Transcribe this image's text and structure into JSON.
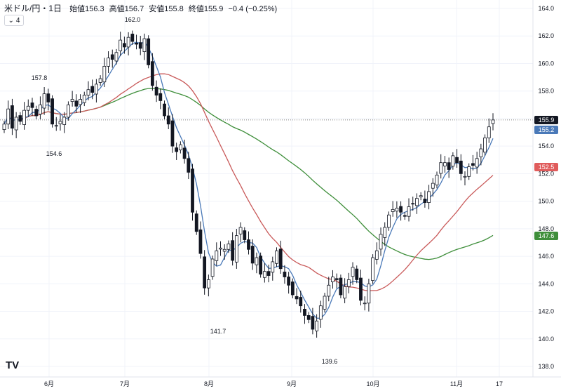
{
  "header": {
    "symbol": "米ドル/円・1日",
    "open": "始値156.3",
    "high": "高値156.7",
    "low": "安値155.8",
    "close": "終値155.9",
    "change": "−0.4 (−0.25%)"
  },
  "indicator_toggle": {
    "icon": "chevron-down-icon",
    "count": "4"
  },
  "logo": "TV",
  "price_labels": [
    {
      "value": "155.9",
      "color": "#131722"
    },
    {
      "value": "155.2",
      "color": "#4a79b8"
    },
    {
      "value": "152.5",
      "color": "#e05c5c"
    },
    {
      "value": "147.6",
      "color": "#3e8e3a"
    }
  ],
  "chart_data": {
    "type": "candlestick",
    "y_axis": {
      "min": 138.0,
      "max": 164.0,
      "ticks": [
        "164.0",
        "162.0",
        "160.0",
        "158.0",
        "156.0",
        "154.0",
        "152.0",
        "150.0",
        "148.0",
        "146.0",
        "144.0",
        "142.0",
        "140.0",
        "138.0"
      ]
    },
    "x_ticks": [
      "6月",
      "7月",
      "8月",
      "9月",
      "10月",
      "11月",
      "17"
    ],
    "annotations": [
      "162.0",
      "157.8",
      "154.6",
      "141.7",
      "139.6"
    ],
    "current_price": 155.9,
    "series": {
      "fast_ma_color": "#4a79b8",
      "mid_ma_color": "#c95a5a",
      "slow_ma_color": "#3e8e3a"
    },
    "candles_close": [
      155.6,
      156.7,
      155.3,
      156.1,
      155.8,
      156.6,
      156.9,
      156.8,
      156.2,
      157.0,
      157.8,
      157.2,
      155.6,
      155.5,
      155.8,
      156.1,
      157.0,
      157.4,
      156.9,
      157.4,
      157.7,
      158.1,
      157.9,
      158.5,
      158.9,
      159.8,
      160.4,
      160.3,
      160.8,
      161.7,
      161.2,
      161.9,
      161.6,
      161.4,
      161.1,
      161.8,
      159.9,
      158.4,
      157.7,
      157.3,
      156.2,
      155.6,
      154.0,
      153.6,
      154.1,
      153.1,
      152.1,
      149.2,
      147.8,
      146.2,
      143.7,
      144.3,
      145.8,
      146.4,
      146.6,
      146.5,
      146.9,
      145.7,
      147.5,
      148.1,
      147.2,
      146.5,
      145.5,
      145.9,
      144.7,
      144.9,
      144.6,
      145.6,
      146.4,
      145.1,
      144.5,
      143.9,
      143.2,
      142.9,
      142.4,
      141.7,
      141.4,
      140.7,
      141.3,
      142.4,
      143.1,
      143.9,
      144.5,
      144.3,
      143.2,
      143.8,
      144.3,
      145.2,
      144.3,
      142.8,
      142.6,
      144.0,
      145.9,
      146.4,
      147.6,
      148.1,
      149.0,
      149.4,
      149.5,
      149.2,
      148.9,
      149.6,
      149.8,
      150.2,
      150.4,
      149.9,
      150.7,
      151.3,
      151.9,
      152.8,
      152.8,
      152.3,
      153.3,
      152.8,
      152.0,
      151.8,
      152.5,
      152.6,
      153.1,
      153.8,
      154.6,
      155.4,
      155.9
    ]
  }
}
